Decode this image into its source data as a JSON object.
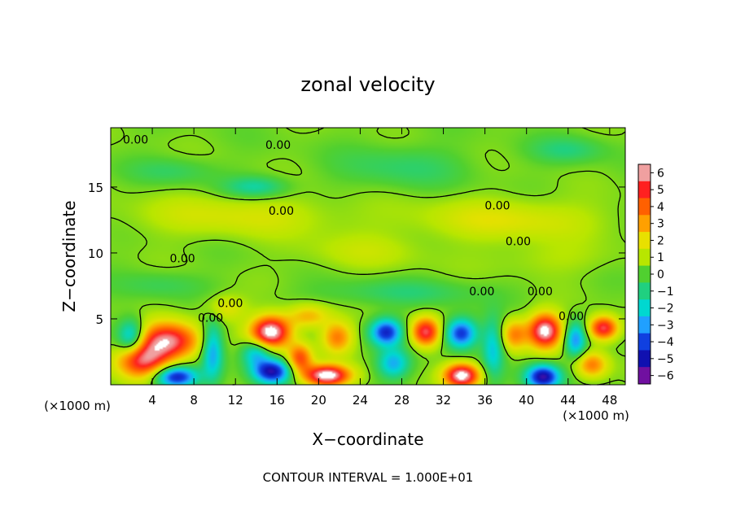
{
  "chart_data": {
    "type": "heatmap",
    "title": "zonal velocity",
    "xlabel": "X−coordinate",
    "ylabel": "Z−coordinate",
    "x_unit_left": "(×1000 m)",
    "x_unit_right": "(×1000 m)",
    "footer": "CONTOUR INTERVAL = 1.000E+01",
    "xlim": [
      0,
      49.5
    ],
    "ylim": [
      0,
      19.5
    ],
    "x_ticks": [
      4,
      8,
      12,
      16,
      20,
      24,
      28,
      32,
      36,
      40,
      44,
      48
    ],
    "y_ticks": [
      5,
      10,
      15
    ],
    "colorbar_ticks": [
      6,
      5,
      4,
      3,
      2,
      1,
      0,
      -1,
      -2,
      -3,
      -4,
      -5,
      -6
    ],
    "colorbar_tick_labels": [
      "6",
      "5",
      "4",
      "3",
      "2",
      "1",
      "0",
      "−1",
      "−2",
      "−3",
      "−4",
      "−5",
      "−6"
    ],
    "colorbar_colors": [
      "#f0a0a0",
      "#ff2020",
      "#ff6000",
      "#ffa000",
      "#e8e000",
      "#b8e600",
      "#50d030",
      "#20d080",
      "#00d8d0",
      "#20a0ff",
      "#1040e0",
      "#1010b0",
      "#7010a0"
    ],
    "contour_labels": [
      {
        "text": "0.00",
        "x": 2.4,
        "z": 18.6
      },
      {
        "text": "0.00",
        "x": 16.1,
        "z": 18.2
      },
      {
        "text": "0.00",
        "x": 16.4,
        "z": 13.2
      },
      {
        "text": "0.00",
        "x": 37.2,
        "z": 13.6
      },
      {
        "text": "0.00",
        "x": 39.2,
        "z": 10.9
      },
      {
        "text": "0.00",
        "x": 6.9,
        "z": 9.6
      },
      {
        "text": "0.00",
        "x": 35.7,
        "z": 7.1
      },
      {
        "text": "0.00",
        "x": 41.3,
        "z": 7.1
      },
      {
        "text": "0.00",
        "x": 11.5,
        "z": 6.2
      },
      {
        "text": "0.00",
        "x": 44.3,
        "z": 5.2
      },
      {
        "text": "0.00",
        "x": 9.6,
        "z": 5.1
      }
    ],
    "velocity_cells": [
      {
        "x": 5.5,
        "z": 3.3,
        "v": 5.5,
        "sx": 3.0,
        "sz": 1.4
      },
      {
        "x": 3.0,
        "z": 1.8,
        "v": 4.6,
        "sx": 2.4,
        "sz": 1.3
      },
      {
        "x": 2.0,
        "z": 3.6,
        "v": -3.6,
        "sx": 1.3,
        "sz": 1.3
      },
      {
        "x": 6.3,
        "z": 0.6,
        "v": -5.2,
        "sx": 2.0,
        "sz": 0.8
      },
      {
        "x": 9.8,
        "z": 2.6,
        "v": -3.4,
        "sx": 1.0,
        "sz": 2.2
      },
      {
        "x": 15.4,
        "z": 4.0,
        "v": 6.5,
        "sx": 1.9,
        "sz": 1.2
      },
      {
        "x": 14.0,
        "z": 2.4,
        "v": -3.0,
        "sx": 1.4,
        "sz": 1.0
      },
      {
        "x": 15.5,
        "z": 1.0,
        "v": -5.4,
        "sx": 1.8,
        "sz": 0.9
      },
      {
        "x": 18.2,
        "z": 2.0,
        "v": 4.0,
        "sx": 1.2,
        "sz": 1.1
      },
      {
        "x": 20.8,
        "z": 0.7,
        "v": 6.5,
        "sx": 2.2,
        "sz": 0.8
      },
      {
        "x": 21.8,
        "z": 3.6,
        "v": 3.2,
        "sx": 1.5,
        "sz": 1.2
      },
      {
        "x": 19.0,
        "z": 5.2,
        "v": 2.4,
        "sx": 2.0,
        "sz": 0.9
      },
      {
        "x": 26.5,
        "z": 4.0,
        "v": -4.8,
        "sx": 1.5,
        "sz": 1.0
      },
      {
        "x": 30.3,
        "z": 4.0,
        "v": 5.0,
        "sx": 1.4,
        "sz": 1.1
      },
      {
        "x": 27.2,
        "z": 1.6,
        "v": -3.0,
        "sx": 1.5,
        "sz": 1.1
      },
      {
        "x": 33.7,
        "z": 3.9,
        "v": -4.8,
        "sx": 1.5,
        "sz": 1.1
      },
      {
        "x": 33.8,
        "z": 0.7,
        "v": 6.4,
        "sx": 1.7,
        "sz": 0.9
      },
      {
        "x": 36.8,
        "z": 2.8,
        "v": -2.6,
        "sx": 1.0,
        "sz": 2.2
      },
      {
        "x": 41.8,
        "z": 4.1,
        "v": 6.2,
        "sx": 1.6,
        "sz": 1.3
      },
      {
        "x": 41.6,
        "z": 0.6,
        "v": -5.8,
        "sx": 1.6,
        "sz": 0.9
      },
      {
        "x": 38.8,
        "z": 3.8,
        "v": 3.0,
        "sx": 1.3,
        "sz": 1.2
      },
      {
        "x": 44.7,
        "z": 3.4,
        "v": -3.6,
        "sx": 1.0,
        "sz": 1.3
      },
      {
        "x": 47.4,
        "z": 4.3,
        "v": 5.2,
        "sx": 1.4,
        "sz": 0.9
      },
      {
        "x": 46.3,
        "z": 1.5,
        "v": 3.2,
        "sx": 1.5,
        "sz": 1.0
      },
      {
        "x": 11.0,
        "z": 5.8,
        "v": 1.6,
        "sx": 2.0,
        "sz": 1.0
      },
      {
        "x": 38.0,
        "z": 12.5,
        "v": 1.4,
        "sx": 9.0,
        "sz": 1.6
      },
      {
        "x": 12.0,
        "z": 12.8,
        "v": 1.2,
        "sx": 10.0,
        "sz": 1.6
      },
      {
        "x": 14.0,
        "z": 15.0,
        "v": -1.8,
        "sx": 3.0,
        "sz": 0.8
      },
      {
        "x": 28.0,
        "z": 16.5,
        "v": -1.0,
        "sx": 6.0,
        "sz": 1.6
      },
      {
        "x": 44.0,
        "z": 17.8,
        "v": -1.2,
        "sx": 3.5,
        "sz": 1.0
      },
      {
        "x": 6.0,
        "z": 16.2,
        "v": -0.9,
        "sx": 4.0,
        "sz": 1.0
      },
      {
        "x": 28.0,
        "z": 7.0,
        "v": -1.0,
        "sx": 8.0,
        "sz": 1.0
      },
      {
        "x": 42.0,
        "z": 9.5,
        "v": 0.6,
        "sx": 6.0,
        "sz": 1.3
      },
      {
        "x": 5.0,
        "z": 7.6,
        "v": -0.8,
        "sx": 4.0,
        "sz": 1.0
      },
      {
        "x": 24.0,
        "z": 10.0,
        "v": 0.8,
        "sx": 6.0,
        "sz": 1.4
      }
    ]
  }
}
